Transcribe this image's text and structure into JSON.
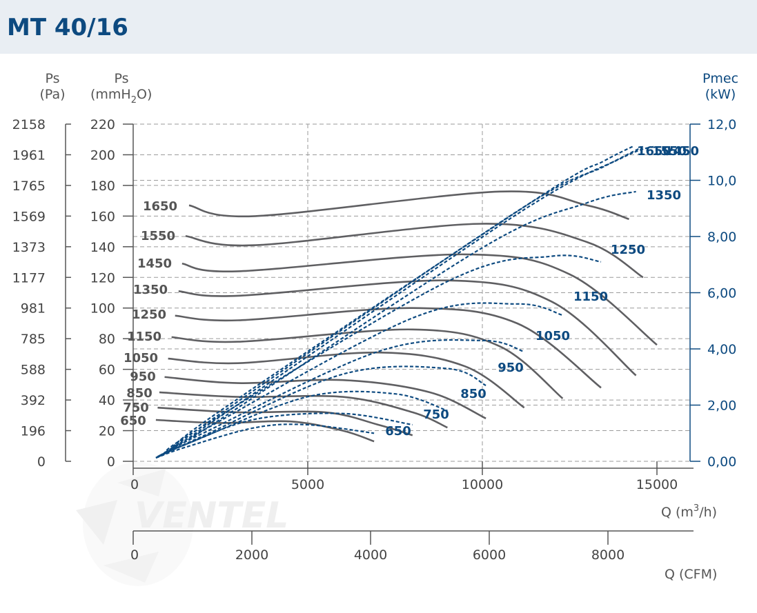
{
  "header": {
    "title": "MT 40/16"
  },
  "labels": {
    "ps_pa_1": "Ps",
    "ps_pa_2": "(Pa)",
    "ps_mm_1": "Ps",
    "ps_mm_2": "(mmH",
    "ps_mm_sub": "2",
    "ps_mm_3": "O)",
    "pmec_1": "Pmec",
    "pmec_2": "(kW)",
    "q_m3h": "Q (m",
    "q_m3h_sup": "3",
    "q_m3h_tail": "/h)",
    "q_cfm": "Q (CFM)",
    "watermark": "VENTEL"
  },
  "colors": {
    "header_bg": "#e9eef3",
    "title": "#0d4a80",
    "fan_curve": "#5f5f62",
    "power_curve": "#0d4a80"
  },
  "chart_data": {
    "type": "line",
    "x_axis": {
      "label": "Q (m3/h)",
      "range": [
        0,
        16000
      ],
      "ticks": [
        "0",
        "5000",
        "10000",
        "15000"
      ]
    },
    "x_axis_cfm": {
      "label": "Q (CFM)",
      "ticks": [
        "0",
        "2000",
        "4000",
        "6000",
        "8000"
      ]
    },
    "y_axis_mmh2o": {
      "label": "Ps (mmH2O)",
      "range": [
        0,
        220
      ],
      "ticks": [
        "0",
        "20",
        "40",
        "60",
        "80",
        "100",
        "120",
        "140",
        "160",
        "180",
        "200",
        "220"
      ]
    },
    "y_axis_pa": {
      "label": "Ps (Pa)",
      "ticks": [
        "0",
        "196",
        "392",
        "588",
        "785",
        "981",
        "1177",
        "1373",
        "1569",
        "1765",
        "1961",
        "2158"
      ]
    },
    "y_axis_kw": {
      "label": "Pmec (kW)",
      "range": [
        0,
        12
      ],
      "ticks": [
        "0,00",
        "2,00",
        "4,00",
        "6,00",
        "8,00",
        "10,0",
        "12,0"
      ]
    },
    "grid": true,
    "pressure_series": [
      {
        "name": "650",
        "points": [
          [
            650,
            27
          ],
          [
            2500,
            25
          ],
          [
            4500,
            26
          ],
          [
            6000,
            20
          ],
          [
            6900,
            13
          ]
        ]
      },
      {
        "name": "750",
        "points": [
          [
            700,
            35
          ],
          [
            3000,
            32
          ],
          [
            5500,
            32
          ],
          [
            7000,
            24
          ],
          [
            8000,
            17
          ]
        ]
      },
      {
        "name": "850",
        "points": [
          [
            750,
            45
          ],
          [
            3000,
            42
          ],
          [
            6000,
            42
          ],
          [
            8000,
            32
          ],
          [
            9000,
            22
          ]
        ]
      },
      {
        "name": "950",
        "points": [
          [
            900,
            55
          ],
          [
            3000,
            51
          ],
          [
            6000,
            53
          ],
          [
            8500,
            45
          ],
          [
            10100,
            28
          ]
        ]
      },
      {
        "name": "1050",
        "points": [
          [
            1000,
            67
          ],
          [
            3000,
            64
          ],
          [
            7000,
            71
          ],
          [
            9500,
            62
          ],
          [
            11200,
            35
          ]
        ]
      },
      {
        "name": "1150",
        "points": [
          [
            1100,
            81
          ],
          [
            3000,
            78
          ],
          [
            8000,
            86
          ],
          [
            10500,
            75
          ],
          [
            12300,
            41
          ]
        ]
      },
      {
        "name": "1250",
        "points": [
          [
            1200,
            95
          ],
          [
            3000,
            92
          ],
          [
            8000,
            100
          ],
          [
            11000,
            90
          ],
          [
            13400,
            48
          ]
        ]
      },
      {
        "name": "1350",
        "points": [
          [
            1300,
            111
          ],
          [
            3000,
            108
          ],
          [
            9000,
            118
          ],
          [
            12000,
            104
          ],
          [
            14400,
            56
          ]
        ]
      },
      {
        "name": "1450",
        "points": [
          [
            1400,
            129
          ],
          [
            3000,
            124
          ],
          [
            9500,
            135
          ],
          [
            12500,
            122
          ],
          [
            15000,
            76
          ]
        ]
      },
      {
        "name": "1550",
        "points": [
          [
            1500,
            147
          ],
          [
            3500,
            141
          ],
          [
            10000,
            155
          ],
          [
            13000,
            143
          ],
          [
            14600,
            120
          ]
        ]
      },
      {
        "name": "1650",
        "points": [
          [
            1600,
            167
          ],
          [
            3500,
            160
          ],
          [
            10500,
            176
          ],
          [
            13000,
            167
          ],
          [
            14200,
            158
          ]
        ]
      }
    ],
    "power_series": [
      {
        "name": "650",
        "points": [
          [
            650,
            0.12
          ],
          [
            1500,
            0.5
          ],
          [
            3500,
            1.2
          ],
          [
            5000,
            1.3
          ],
          [
            6900,
            1.0
          ]
        ]
      },
      {
        "name": "750",
        "points": [
          [
            650,
            0.13
          ],
          [
            1500,
            0.6
          ],
          [
            3500,
            1.5
          ],
          [
            6000,
            1.7
          ],
          [
            8000,
            1.3
          ]
        ]
      },
      {
        "name": "850",
        "points": [
          [
            700,
            0.15
          ],
          [
            1800,
            0.75
          ],
          [
            5000,
            2.3
          ],
          [
            7500,
            2.4
          ],
          [
            9000,
            1.8
          ]
        ]
      },
      {
        "name": "950",
        "points": [
          [
            700,
            0.17
          ],
          [
            2000,
            0.9
          ],
          [
            6000,
            3.1
          ],
          [
            9000,
            3.3
          ],
          [
            10100,
            2.7
          ]
        ]
      },
      {
        "name": "1050",
        "points": [
          [
            750,
            0.2
          ],
          [
            2000,
            1.0
          ],
          [
            7000,
            3.9
          ],
          [
            10000,
            4.3
          ],
          [
            11200,
            3.9
          ]
        ]
      },
      {
        "name": "1150",
        "points": [
          [
            800,
            0.22
          ],
          [
            2000,
            1.1
          ],
          [
            8000,
            5.1
          ],
          [
            11000,
            5.6
          ],
          [
            12300,
            5.2
          ]
        ]
      },
      {
        "name": "1250",
        "points": [
          [
            850,
            0.25
          ],
          [
            2000,
            1.25
          ],
          [
            9000,
            6.4
          ],
          [
            12000,
            7.3
          ],
          [
            13400,
            7.1
          ]
        ]
      },
      {
        "name": "1350",
        "points": [
          [
            900,
            0.28
          ],
          [
            2500,
            1.5
          ],
          [
            10000,
            7.6
          ],
          [
            13000,
            9.2
          ],
          [
            14400,
            9.6
          ]
        ]
      },
      {
        "name": "1450",
        "points": [
          [
            950,
            0.3
          ],
          [
            2500,
            1.6
          ],
          [
            11000,
            8.8
          ],
          [
            14000,
            10.8
          ],
          [
            14900,
            11.2
          ]
        ]
      },
      {
        "name": "1550",
        "points": [
          [
            1000,
            0.32
          ],
          [
            2500,
            1.7
          ],
          [
            11000,
            8.9
          ],
          [
            13500,
            10.5
          ],
          [
            14600,
            11.2
          ]
        ]
      },
      {
        "name": "1650",
        "points": [
          [
            1050,
            0.35
          ],
          [
            2500,
            1.8
          ],
          [
            11500,
            9.3
          ],
          [
            13500,
            10.7
          ],
          [
            14300,
            11.2
          ]
        ]
      }
    ],
    "power_labels": [
      "650",
      "750",
      "850",
      "950",
      "1050",
      "1150",
      "1250",
      "1350",
      "1650",
      "1550",
      "1450"
    ],
    "speed_labels": [
      "1650",
      "1550",
      "1450",
      "1350",
      "1250",
      "1150",
      "1050",
      "950",
      "850",
      "750",
      "650"
    ]
  }
}
